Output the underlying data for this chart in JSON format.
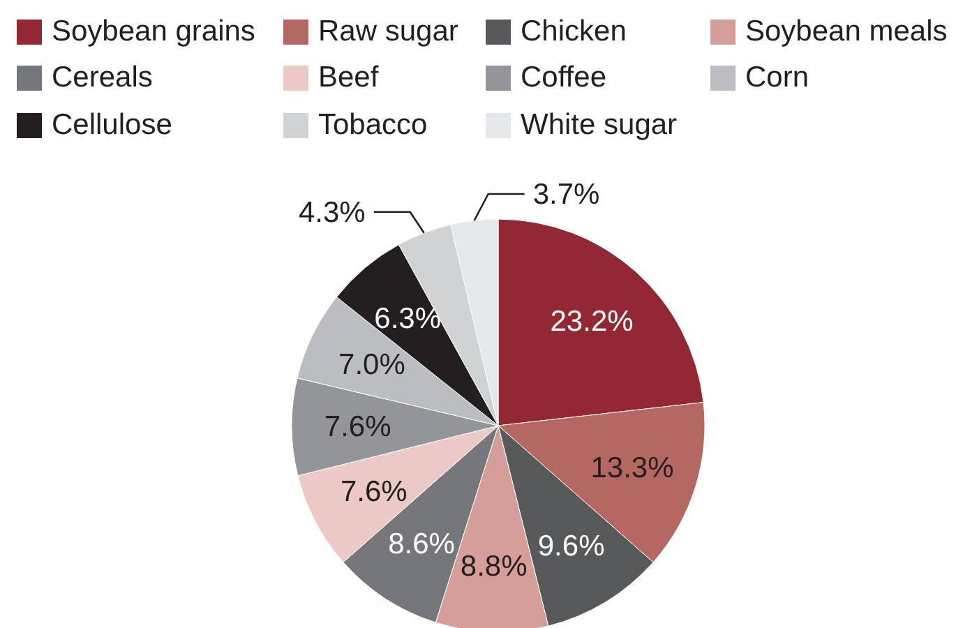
{
  "chart_data": {
    "type": "pie",
    "categories": [
      "Soybean grains",
      "Raw sugar",
      "Chicken",
      "Soybean meals",
      "Cereals",
      "Beef",
      "Coffee",
      "Corn",
      "Cellulose",
      "Tobacco",
      "White sugar"
    ],
    "values": [
      23.2,
      13.3,
      9.6,
      8.8,
      8.6,
      7.6,
      7.6,
      7.0,
      6.3,
      4.3,
      3.7
    ],
    "value_labels": [
      "23.2%",
      "13.3%",
      "9.6%",
      "8.8%",
      "8.6%",
      "7.6%",
      "7.6%",
      "7.0%",
      "6.3%",
      "4.3%",
      "3.7%"
    ],
    "colors": [
      "#922833",
      "#b56862",
      "#58595b",
      "#d59e98",
      "#76777a",
      "#ebc9c4",
      "#939598",
      "#bcbdc0",
      "#231f20",
      "#d1d2d4",
      "#e6e7e8"
    ],
    "legend": "top"
  }
}
